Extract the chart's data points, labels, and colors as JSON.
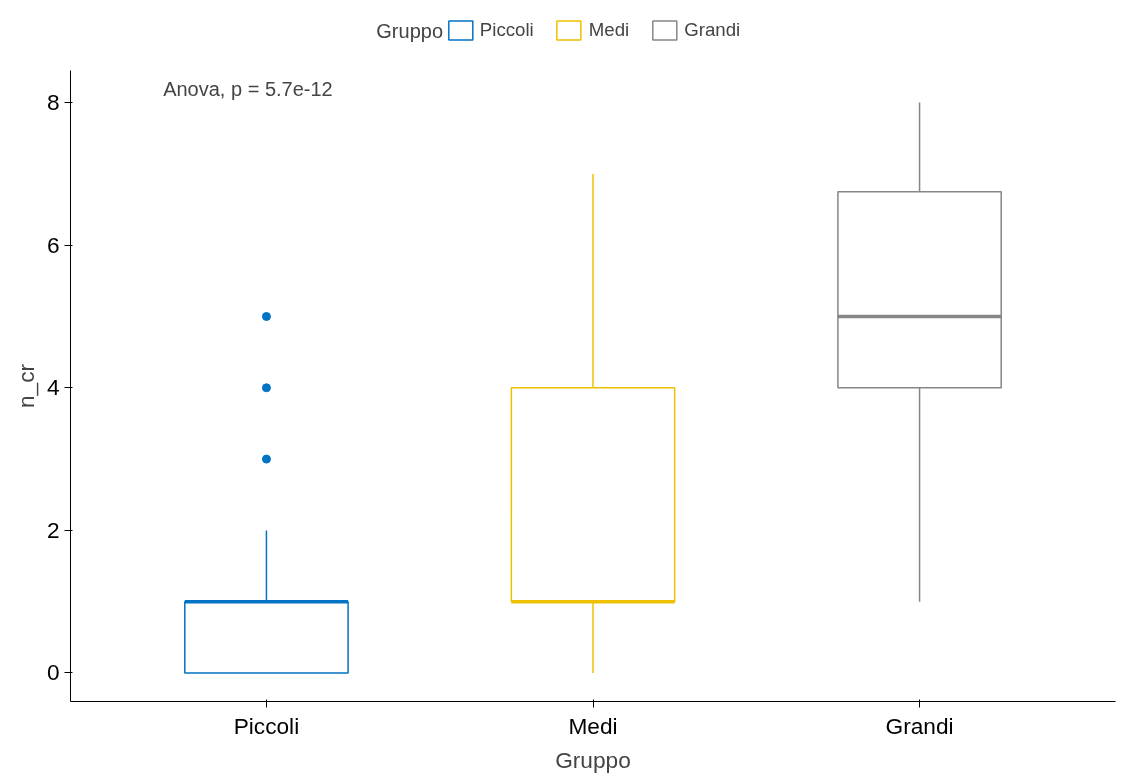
{
  "chart_data": {
    "type": "box",
    "categories": [
      "Piccoli",
      "Medi",
      "Grandi"
    ],
    "series": [
      {
        "name": "Piccoli",
        "color": "#0073c2",
        "boxes": [
          {
            "low": 0,
            "q1": 0,
            "median": 1,
            "q3": 1,
            "high": 2,
            "outliers": [
              3,
              4,
              5
            ]
          },
          null,
          null
        ]
      },
      {
        "name": "Medi",
        "color": "#efc000",
        "boxes": [
          null,
          {
            "low": 0,
            "q1": 1,
            "median": 1,
            "q3": 4,
            "high": 7
          },
          null
        ]
      },
      {
        "name": "Grandi",
        "color": "#868686",
        "boxes": [
          null,
          null,
          {
            "low": 1,
            "q1": 4,
            "median": 5,
            "q3": 6.75,
            "high": 8
          }
        ]
      }
    ],
    "xlabel": "Gruppo",
    "ylabel": "n_cr",
    "legend_title": "Gruppo",
    "annotations": [
      "Anova, p = 5.7e-12"
    ],
    "ylim": [
      -0.4,
      8.45
    ],
    "yticks": [
      0,
      2,
      4,
      6,
      8
    ],
    "grid": false,
    "legend": "top"
  }
}
